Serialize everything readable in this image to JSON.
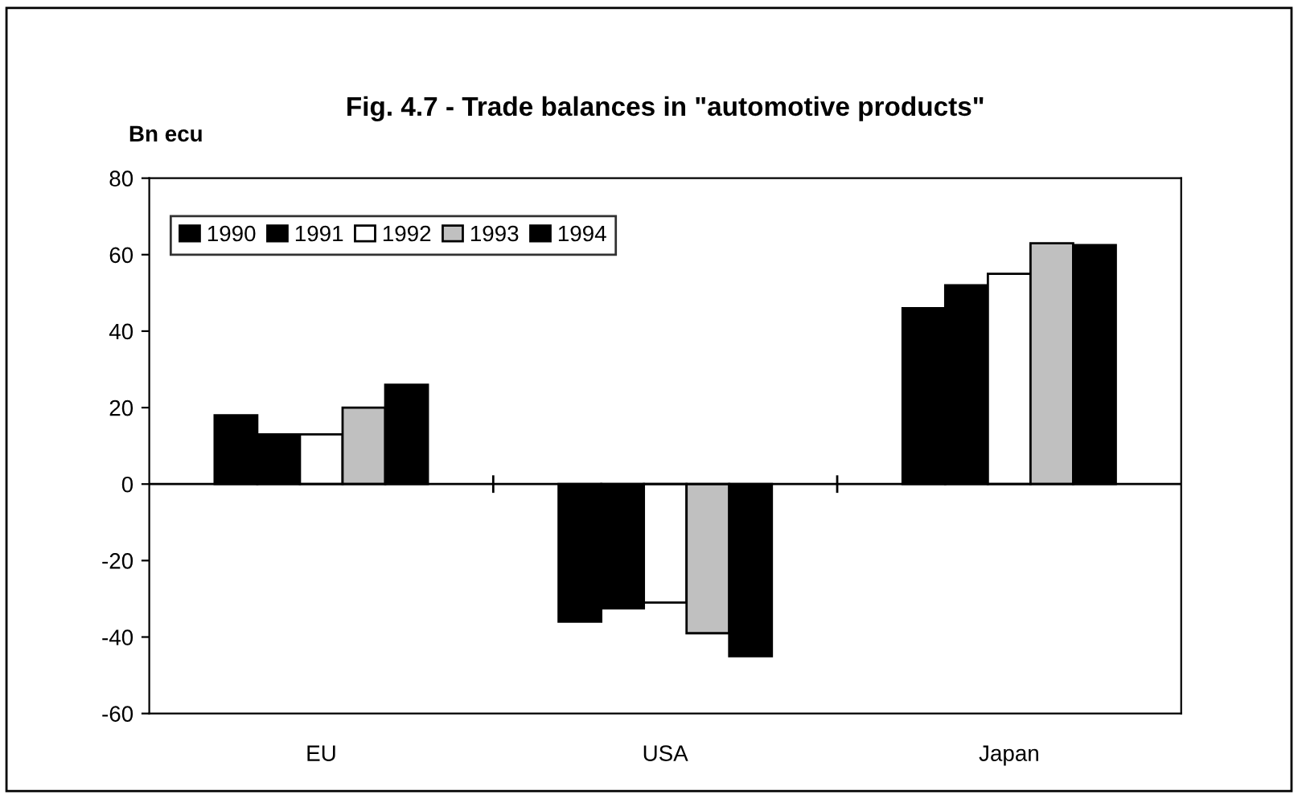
{
  "chart_data": {
    "type": "bar",
    "title": "Fig. 4.7 - Trade balances in \"automotive products\"",
    "ylabel": "Bn ecu",
    "categories": [
      "EU",
      "USA",
      "Japan"
    ],
    "series": [
      {
        "name": "1990",
        "color": "#000000",
        "values": [
          18,
          -36,
          46
        ]
      },
      {
        "name": "1991",
        "color": "#000000",
        "values": [
          13,
          -32.5,
          52
        ]
      },
      {
        "name": "1992",
        "color": "#ffffff",
        "values": [
          13,
          -31,
          55
        ]
      },
      {
        "name": "1993",
        "color": "#c0c0c0",
        "values": [
          20,
          -39,
          63
        ]
      },
      {
        "name": "1994",
        "color": "#000000",
        "values": [
          26,
          -45,
          62.5
        ]
      }
    ],
    "ylim": [
      -60,
      80
    ],
    "yticks": [
      -60,
      -40,
      -20,
      0,
      20,
      40,
      60,
      80
    ],
    "legend": "top left"
  }
}
